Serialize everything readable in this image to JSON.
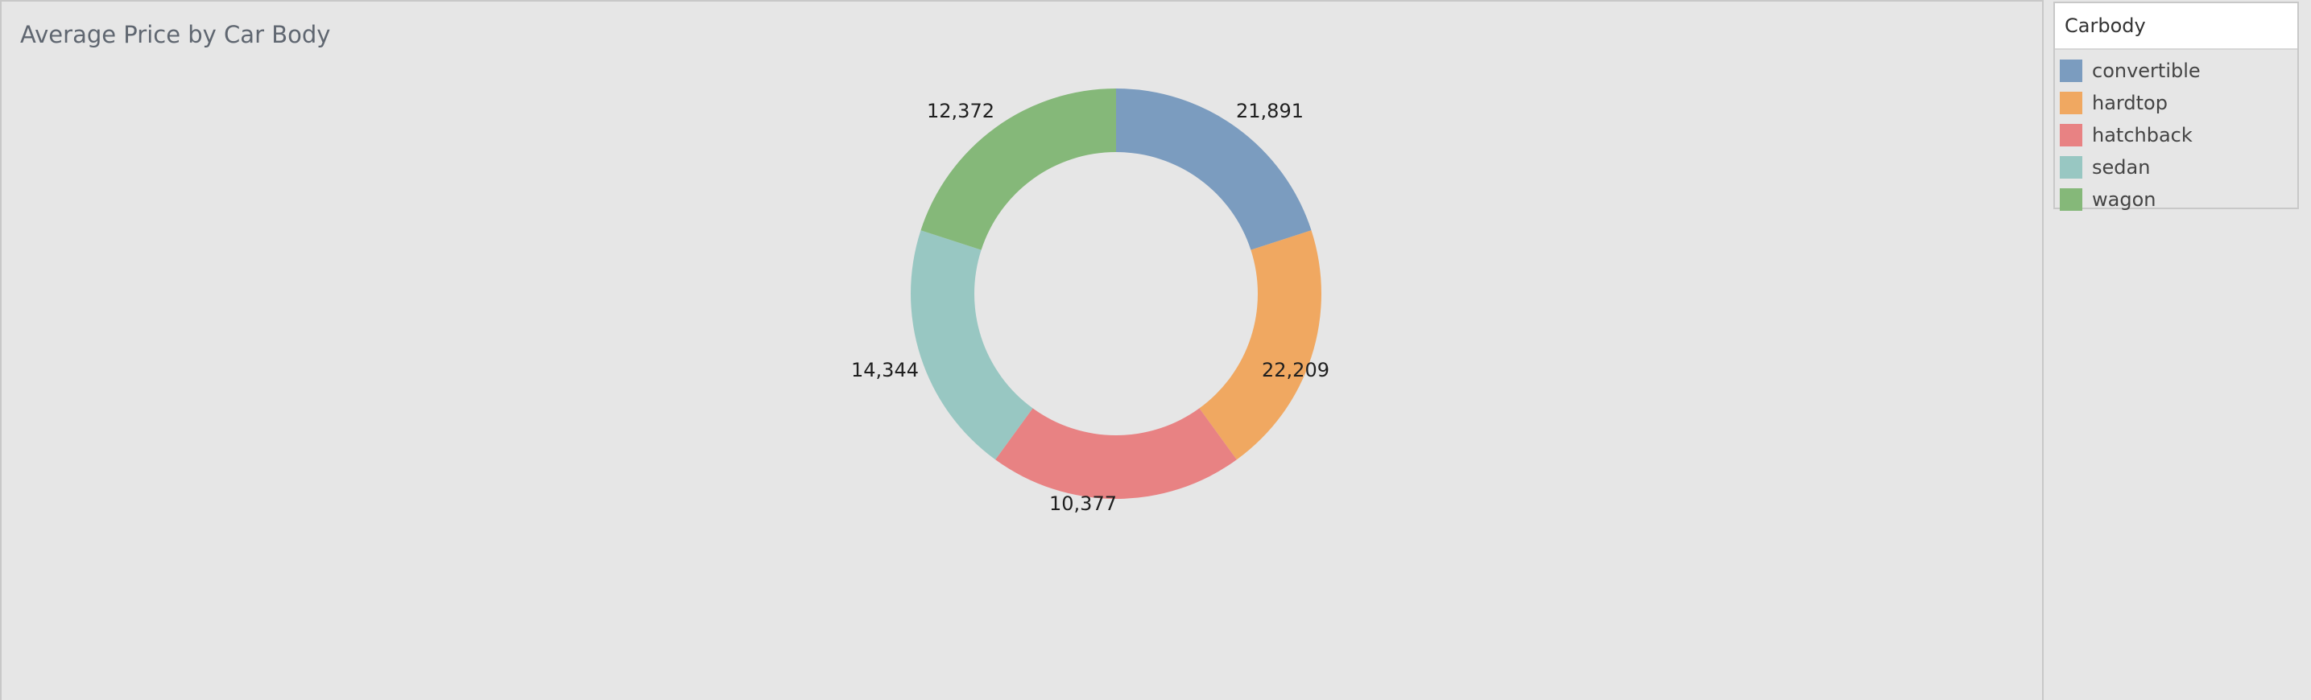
{
  "chart_data": {
    "type": "pie",
    "title": "Average Price by Car Body",
    "categories": [
      "convertible",
      "hardtop",
      "hatchback",
      "sedan",
      "wagon"
    ],
    "values": [
      21891,
      22209,
      10377,
      14344,
      12372
    ],
    "value_labels": [
      "21,891",
      "22,209",
      "10,377",
      "14,344",
      "12,372"
    ],
    "colors": [
      "#7b9cbf",
      "#f0a861",
      "#e88283",
      "#98c7c2",
      "#85b879"
    ],
    "donut": true,
    "slice_order_note": "equal angular slices clockwise from top",
    "legend": {
      "title": "Carbody",
      "placement": "right",
      "items": [
        {
          "label": "convertible",
          "color": "#7b9cbf"
        },
        {
          "label": "hardtop",
          "color": "#f0a861"
        },
        {
          "label": "hatchback",
          "color": "#e88283"
        },
        {
          "label": "sedan",
          "color": "#98c7c2"
        },
        {
          "label": "wagon",
          "color": "#85b879"
        }
      ]
    }
  }
}
